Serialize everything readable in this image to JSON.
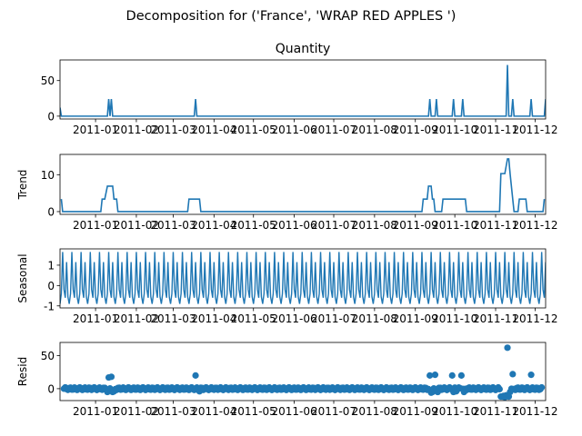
{
  "figure": {
    "suptitle": "Decomposition for ('France', 'WRAP RED APPLES ')"
  },
  "theme": {
    "line_color": "#1f77b4",
    "marker_color": "#1f77b4",
    "axis_color": "#000000"
  },
  "chart_data": [
    {
      "type": "line",
      "title": "Quantity",
      "ylabel": "",
      "xlim": [
        "2010-12-05",
        "2011-12-09"
      ],
      "ylim": [
        -4,
        79
      ],
      "yticks": [
        0,
        50
      ],
      "xticks": [
        "2011-01",
        "2011-02",
        "2011-03",
        "2011-04",
        "2011-05",
        "2011-06",
        "2011-07",
        "2011-08",
        "2011-09",
        "2011-10",
        "2011-11",
        "2011-12"
      ],
      "series": [
        {
          "x": [
            "2010-12-05",
            "2010-12-06",
            "2011-01-10",
            "2011-01-11",
            "2011-01-12",
            "2011-01-13",
            "2011-01-14",
            "2011-03-17",
            "2011-03-18",
            "2011-03-19",
            "2011-09-11",
            "2011-09-12",
            "2011-09-13",
            "2011-09-16",
            "2011-09-17",
            "2011-09-18",
            "2011-09-29",
            "2011-09-30",
            "2011-10-01",
            "2011-10-06",
            "2011-10-07",
            "2011-10-08",
            "2011-11-09",
            "2011-11-10",
            "2011-11-11",
            "2011-11-13",
            "2011-11-14",
            "2011-11-15",
            "2011-11-27",
            "2011-11-28",
            "2011-11-29",
            "2011-12-08",
            "2011-12-09"
          ],
          "y": [
            12,
            0,
            0,
            24,
            0,
            24,
            0,
            0,
            24,
            0,
            0,
            24,
            0,
            0,
            24,
            0,
            0,
            24,
            0,
            0,
            24,
            0,
            0,
            72,
            0,
            0,
            24,
            0,
            0,
            24,
            0,
            0,
            24
          ]
        }
      ]
    },
    {
      "type": "line",
      "title": "",
      "ylabel": "Trend",
      "xlim": [
        "2010-12-05",
        "2011-12-09"
      ],
      "ylim": [
        -0.75,
        15.5
      ],
      "yticks": [
        0,
        10
      ],
      "xticks": [
        "2011-01",
        "2011-02",
        "2011-03",
        "2011-04",
        "2011-05",
        "2011-06",
        "2011-07",
        "2011-08",
        "2011-09",
        "2011-10",
        "2011-11",
        "2011-12"
      ],
      "series": [
        {
          "x": [
            "2010-12-06",
            "2010-12-07",
            "2011-01-05",
            "2011-01-06",
            "2011-01-07",
            "2011-01-08",
            "2011-01-10",
            "2011-01-11",
            "2011-01-14",
            "2011-01-15",
            "2011-01-17",
            "2011-01-18",
            "2011-01-19",
            "2011-03-12",
            "2011-03-13",
            "2011-03-14",
            "2011-03-21",
            "2011-03-22",
            "2011-03-23",
            "2011-09-06",
            "2011-09-07",
            "2011-09-08",
            "2011-09-10",
            "2011-09-11",
            "2011-09-13",
            "2011-09-14",
            "2011-09-15",
            "2011-09-16",
            "2011-09-18",
            "2011-09-19",
            "2011-09-21",
            "2011-09-22",
            "2011-09-23",
            "2011-09-24",
            "2011-10-02",
            "2011-10-03",
            "2011-10-09",
            "2011-10-10",
            "2011-10-11",
            "2011-11-04",
            "2011-11-05",
            "2011-11-06",
            "2011-11-07",
            "2011-11-08",
            "2011-11-10",
            "2011-11-11",
            "2011-11-12",
            "2011-11-14",
            "2011-11-15",
            "2011-11-17",
            "2011-11-18",
            "2011-11-19",
            "2011-11-23",
            "2011-11-24",
            "2011-11-25",
            "2011-11-30",
            "2011-12-01",
            "2011-12-02",
            "2011-12-07",
            "2011-12-08"
          ],
          "y": [
            3.4,
            0,
            0,
            3.4,
            3.4,
            3.4,
            6.9,
            6.9,
            6.9,
            3.4,
            3.4,
            0,
            0,
            0,
            3.4,
            3.4,
            3.4,
            0,
            0,
            0,
            3.4,
            3.4,
            3.4,
            6.9,
            6.9,
            3.4,
            3.4,
            0,
            0,
            0,
            0,
            3.4,
            3.4,
            3.4,
            3.4,
            3.4,
            3.4,
            0,
            0,
            0,
            10.3,
            10.3,
            10.3,
            10.3,
            14.3,
            14.3,
            10.3,
            3.4,
            0,
            0,
            0,
            3.4,
            3.4,
            3.4,
            0,
            0,
            0,
            0,
            0,
            3.4
          ]
        }
      ]
    },
    {
      "type": "line",
      "title": "",
      "ylabel": "Seasonal",
      "xlim": [
        "2010-12-05",
        "2011-12-09"
      ],
      "ylim": [
        -1.1,
        1.8
      ],
      "yticks": [
        -1,
        0,
        1
      ],
      "xticks": [
        "2011-01",
        "2011-02",
        "2011-03",
        "2011-04",
        "2011-05",
        "2011-06",
        "2011-07",
        "2011-08",
        "2011-09",
        "2011-10",
        "2011-11",
        "2011-12"
      ],
      "seasonal_period_days": 7,
      "seasonal_pattern": [
        -0.9,
        -0.4,
        1.65,
        -0.2,
        -0.6,
        1.15,
        -0.55
      ]
    },
    {
      "type": "scatter",
      "title": "",
      "ylabel": "Resid",
      "xlim": [
        "2010-12-05",
        "2011-12-09"
      ],
      "ylim": [
        -18,
        70
      ],
      "yticks": [
        0,
        50
      ],
      "xticks": [
        "2011-01",
        "2011-02",
        "2011-03",
        "2011-04",
        "2011-05",
        "2011-06",
        "2011-07",
        "2011-08",
        "2011-09",
        "2011-10",
        "2011-11",
        "2011-12"
      ],
      "outliers": [
        {
          "x": "2011-01-11",
          "y": 17
        },
        {
          "x": "2011-01-13",
          "y": 18
        },
        {
          "x": "2011-03-18",
          "y": 20
        },
        {
          "x": "2011-09-12",
          "y": 20
        },
        {
          "x": "2011-09-16",
          "y": 21
        },
        {
          "x": "2011-09-29",
          "y": 20
        },
        {
          "x": "2011-10-06",
          "y": 20
        },
        {
          "x": "2011-11-10",
          "y": 62
        },
        {
          "x": "2011-11-14",
          "y": 22
        },
        {
          "x": "2011-11-28",
          "y": 21
        }
      ],
      "dips": [
        {
          "x": "2011-01-10",
          "y": -5
        },
        {
          "x": "2011-01-14",
          "y": -5
        },
        {
          "x": "2011-01-15",
          "y": -4
        },
        {
          "x": "2011-03-21",
          "y": -4
        },
        {
          "x": "2011-09-13",
          "y": -6
        },
        {
          "x": "2011-09-14",
          "y": -5
        },
        {
          "x": "2011-09-18",
          "y": -5
        },
        {
          "x": "2011-09-30",
          "y": -5
        },
        {
          "x": "2011-10-02",
          "y": -4
        },
        {
          "x": "2011-10-08",
          "y": -5
        },
        {
          "x": "2011-11-05",
          "y": -12
        },
        {
          "x": "2011-11-06",
          "y": -12
        },
        {
          "x": "2011-11-07",
          "y": -11
        },
        {
          "x": "2011-11-08",
          "y": -13
        },
        {
          "x": "2011-11-09",
          "y": -10
        },
        {
          "x": "2011-11-11",
          "y": -12
        },
        {
          "x": "2011-11-12",
          "y": -5
        },
        {
          "x": "2011-12-07",
          "y": -3
        }
      ],
      "baseline_range": [
        -2,
        2
      ]
    }
  ]
}
